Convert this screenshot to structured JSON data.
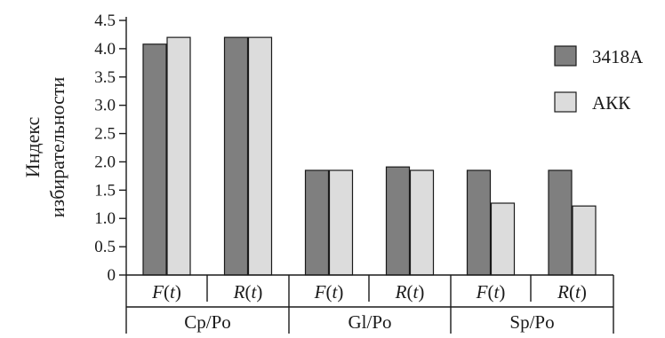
{
  "chart_data": {
    "type": "bar",
    "title": "",
    "ylabel_lines": [
      "Индекс",
      "избирательности"
    ],
    "ylim": [
      0,
      4.5
    ],
    "yticks": [
      "0",
      "0.5",
      "1.0",
      "1.5",
      "2.0",
      "2.5",
      "3.0",
      "3.5",
      "4.0",
      "4.5"
    ],
    "groups": [
      "Cp/Po",
      "Gl/Po",
      "Sp/Po"
    ],
    "categories": [
      "F(t)",
      "R(t)",
      "F(t)",
      "R(t)",
      "F(t)",
      "R(t)"
    ],
    "category_parts": [
      {
        "f": "F",
        "arg": "t"
      },
      {
        "f": "R",
        "arg": "t"
      },
      {
        "f": "F",
        "arg": "t"
      },
      {
        "f": "R",
        "arg": "t"
      },
      {
        "f": "F",
        "arg": "t"
      },
      {
        "f": "R",
        "arg": "t"
      }
    ],
    "series": [
      {
        "name": "3418A",
        "color": "#7f7f7f",
        "values": [
          4.08,
          4.2,
          1.85,
          1.91,
          1.85,
          1.85
        ]
      },
      {
        "name": "АКК",
        "color": "#dcdcdc",
        "values": [
          4.2,
          4.2,
          1.85,
          1.85,
          1.27,
          1.22
        ]
      }
    ],
    "legend_position": "top-right",
    "grid": false
  }
}
